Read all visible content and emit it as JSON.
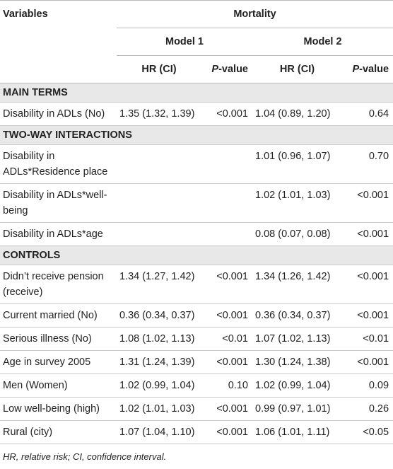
{
  "header": {
    "variables": "Variables",
    "outcome": "Mortality",
    "models": [
      "Model 1",
      "Model 2"
    ],
    "subheads": [
      "HR (CI)",
      "P-value",
      "HR (CI)",
      "P-value"
    ]
  },
  "sections": [
    {
      "title": "MAIN TERMS",
      "rows": [
        {
          "variable": "Disability in ADLs (No)",
          "cells": [
            "1.35 (1.32, 1.39)",
            "<0.001",
            "1.04 (0.89, 1.20)",
            "0.64"
          ]
        }
      ]
    },
    {
      "title": "TWO-WAY INTERACTIONS",
      "rows": [
        {
          "variable": "Disability in ADLs*Residence place",
          "cells": [
            null,
            null,
            "1.01 (0.96, 1.07)",
            "0.70"
          ]
        },
        {
          "variable": "Disability in ADLs*well-being",
          "cells": [
            null,
            null,
            "1.02 (1.01, 1.03)",
            "<0.001"
          ]
        },
        {
          "variable": "Disability in ADLs*age",
          "cells": [
            null,
            null,
            "0.08 (0.07, 0.08)",
            "<0.001"
          ]
        }
      ]
    },
    {
      "title": "CONTROLS",
      "rows": [
        {
          "variable": "Didn’t receive pension (receive)",
          "cells": [
            "1.34 (1.27, 1.42)",
            "<0.001",
            "1.34 (1.26, 1.42)",
            "<0.001"
          ]
        },
        {
          "variable": "Current married (No)",
          "cells": [
            "0.36 (0.34, 0.37)",
            "<0.001",
            "0.36 (0.34, 0.37)",
            "<0.001"
          ]
        },
        {
          "variable": "Serious illness (No)",
          "cells": [
            "1.08 (1.02, 1.13)",
            "<0.01",
            "1.07 (1.02, 1.13)",
            "<0.01"
          ]
        },
        {
          "variable": "Age in survey 2005",
          "cells": [
            "1.31 (1.24, 1.39)",
            "<0.001",
            "1.30 (1.24, 1.38)",
            "<0.001"
          ]
        },
        {
          "variable": "Men (Women)",
          "cells": [
            "1.02 (0.99, 1.04)",
            "0.10",
            "1.02 (0.99, 1.04)",
            "0.09"
          ]
        },
        {
          "variable": "Low well-being (high)",
          "cells": [
            "1.02 (1.01, 1.03)",
            "<0.001",
            "0.99 (0.97, 1.01)",
            "0.26"
          ]
        },
        {
          "variable": "Rural (city)",
          "cells": [
            "1.07 (1.04, 1.10)",
            "<0.001",
            "1.06 (1.01, 1.11)",
            "<0.05"
          ]
        }
      ]
    }
  ],
  "footnote": "HR, relative risk; CI, confidence interval."
}
